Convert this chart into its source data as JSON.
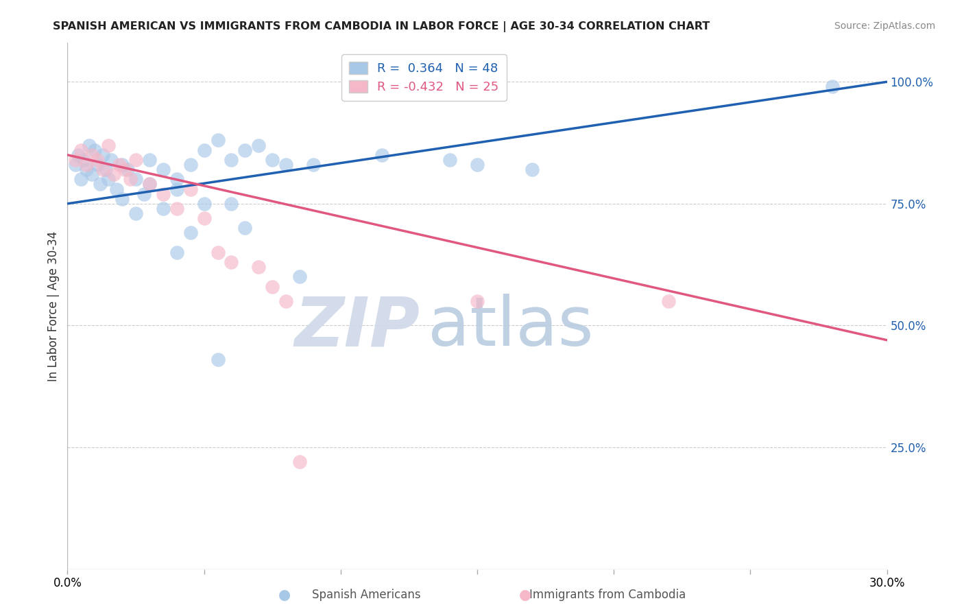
{
  "title": "SPANISH AMERICAN VS IMMIGRANTS FROM CAMBODIA IN LABOR FORCE | AGE 30-34 CORRELATION CHART",
  "source": "Source: ZipAtlas.com",
  "ylabel": "In Labor Force | Age 30-34",
  "xlim": [
    0.0,
    30.0
  ],
  "ylim": [
    0.0,
    108.0
  ],
  "blue_R": 0.364,
  "blue_N": 48,
  "pink_R": -0.432,
  "pink_N": 25,
  "legend_label_blue": "Spanish Americans",
  "legend_label_pink": "Immigrants from Cambodia",
  "blue_color": "#a8c8e8",
  "pink_color": "#f5b8c8",
  "blue_line_color": "#2060b0",
  "pink_line_color": "#e05880",
  "watermark_zip_color": "#d0d8e8",
  "watermark_atlas_color": "#b8cce0",
  "blue_line_x0": 0.0,
  "blue_line_y0": 75.0,
  "blue_line_x1": 30.0,
  "blue_line_y1": 100.0,
  "pink_line_x0": 0.0,
  "pink_line_y0": 85.0,
  "pink_line_x1": 30.0,
  "pink_line_y1": 47.0,
  "blue_dots_x": [
    0.3,
    0.4,
    0.5,
    0.6,
    0.7,
    0.8,
    0.9,
    1.0,
    1.1,
    1.2,
    1.3,
    1.4,
    1.5,
    1.6,
    1.8,
    2.0,
    2.2,
    2.5,
    2.8,
    3.0,
    3.5,
    4.0,
    4.5,
    5.0,
    5.5,
    6.0,
    6.5,
    7.0,
    7.5,
    8.0,
    8.5,
    9.0,
    2.0,
    3.0,
    4.0,
    5.0,
    6.0,
    11.5,
    14.0,
    3.5,
    2.5,
    4.5,
    6.5,
    15.0,
    17.0,
    28.0,
    4.0,
    5.5
  ],
  "blue_dots_y": [
    83,
    85,
    80,
    84,
    82,
    87,
    81,
    86,
    83,
    79,
    85,
    82,
    80,
    84,
    78,
    83,
    82,
    80,
    77,
    84,
    82,
    80,
    83,
    86,
    88,
    84,
    86,
    87,
    84,
    83,
    60,
    83,
    76,
    79,
    78,
    75,
    75,
    85,
    84,
    74,
    73,
    69,
    70,
    83,
    82,
    99,
    65,
    43
  ],
  "pink_dots_x": [
    0.3,
    0.5,
    0.7,
    0.9,
    1.1,
    1.3,
    1.5,
    1.7,
    1.9,
    2.1,
    2.3,
    2.5,
    3.0,
    3.5,
    4.0,
    4.5,
    5.0,
    5.5,
    6.0,
    7.0,
    7.5,
    8.0,
    15.0,
    22.0,
    8.5
  ],
  "pink_dots_y": [
    84,
    86,
    83,
    85,
    84,
    82,
    87,
    81,
    83,
    82,
    80,
    84,
    79,
    77,
    74,
    78,
    72,
    65,
    63,
    62,
    58,
    55,
    55,
    55,
    22
  ]
}
